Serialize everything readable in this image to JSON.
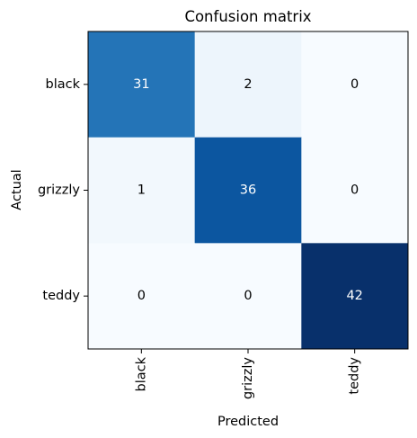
{
  "chart_data": {
    "type": "heatmap",
    "title": "Confusion matrix",
    "xlabel": "Predicted",
    "ylabel": "Actual",
    "x_categories": [
      "black",
      "grizzly",
      "teddy"
    ],
    "y_categories": [
      "black",
      "grizzly",
      "teddy"
    ],
    "values": [
      [
        31,
        2,
        0
      ],
      [
        1,
        36,
        0
      ],
      [
        0,
        0,
        42
      ]
    ],
    "value_labels": [
      [
        "31",
        "2",
        "0"
      ],
      [
        "1",
        "36",
        "0"
      ],
      [
        "0",
        "0",
        "42"
      ]
    ],
    "colormap": "Blues",
    "colors": {
      "low": "#f7fbff",
      "high": "#08306b",
      "text_dark": "#000000",
      "text_light": "#ffffff"
    },
    "grid": false,
    "legend": "none"
  }
}
